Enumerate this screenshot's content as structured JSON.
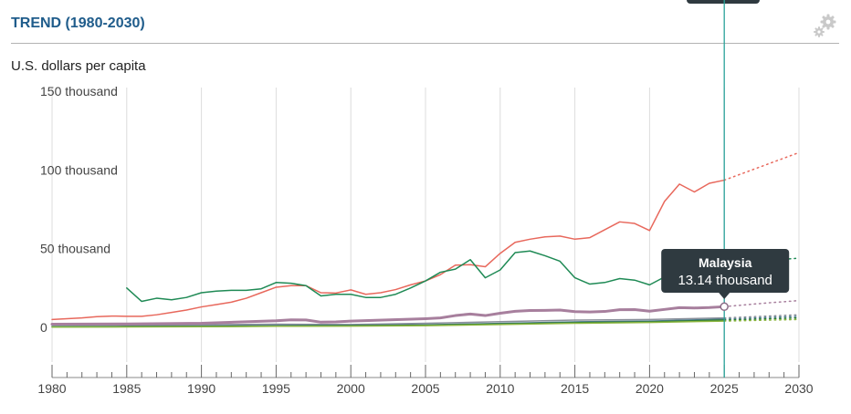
{
  "title": "TREND (1980-2030)",
  "unit_label": "U.S. dollars per capita",
  "settings_icon": "gear-icon",
  "tooltip": {
    "country": "Malaysia",
    "value": "13.14 thousand"
  },
  "chart_data": {
    "type": "line",
    "title": "TREND (1980-2030)",
    "ylabel": "U.S. dollars per capita",
    "xlim": [
      1980,
      2030
    ],
    "ylim": [
      -25000,
      150000
    ],
    "x_ticks": [
      "1980",
      "1985",
      "1990",
      "1995",
      "2000",
      "2005",
      "2010",
      "2015",
      "2020",
      "2025",
      "2030"
    ],
    "y_ticks": [
      {
        "value": 0,
        "label": "0"
      },
      {
        "value": 50000,
        "label": "50 thousand"
      },
      {
        "value": 100000,
        "label": "100 thousand"
      },
      {
        "value": 150000,
        "label": "150 thousand"
      }
    ],
    "grid": "vertical",
    "current_year": 2025,
    "highlight": {
      "x": 2025,
      "y": 13140
    },
    "series": [
      {
        "color": "#e8685c",
        "width": 1.5,
        "x": [
          1980,
          1981,
          1982,
          1983,
          1984,
          1985,
          1986,
          1987,
          1988,
          1989,
          1990,
          1991,
          1992,
          1993,
          1994,
          1995,
          1996,
          1997,
          1998,
          1999,
          2000,
          2001,
          2002,
          2003,
          2004,
          2005,
          2006,
          2007,
          2008,
          2009,
          2010,
          2011,
          2012,
          2013,
          2014,
          2015,
          2016,
          2017,
          2018,
          2019,
          2020,
          2021,
          2022,
          2023,
          2024,
          2025
        ],
        "y": [
          5000,
          5500,
          6000,
          6800,
          7200,
          7000,
          7000,
          8000,
          9500,
          11000,
          13000,
          14500,
          16000,
          18500,
          22000,
          25500,
          26500,
          26500,
          22000,
          21800,
          23800,
          21000,
          22000,
          24000,
          27000,
          29500,
          33500,
          39500,
          39800,
          38500,
          47000,
          54000,
          56000,
          57500,
          58000,
          56000,
          57000,
          62000,
          67000,
          66000,
          61500,
          80000,
          91000,
          86000,
          91500,
          93500
        ],
        "proj_x": [
          2025,
          2026,
          2027,
          2028,
          2029,
          2030
        ],
        "proj_y": [
          93500,
          97000,
          100500,
          104000,
          107500,
          111000
        ]
      },
      {
        "color": "#1f8a55",
        "width": 1.5,
        "x": [
          1985,
          1986,
          1987,
          1988,
          1989,
          1990,
          1991,
          1992,
          1993,
          1994,
          1995,
          1996,
          1997,
          1998,
          1999,
          2000,
          2001,
          2002,
          2003,
          2004,
          2005,
          2006,
          2007,
          2008,
          2009,
          2010,
          2011,
          2012,
          2013,
          2014,
          2015,
          2016,
          2017,
          2018,
          2019,
          2020,
          2021,
          2022,
          2023,
          2024,
          2025
        ],
        "y": [
          25000,
          16500,
          18500,
          17500,
          19000,
          22000,
          23000,
          23500,
          23500,
          24500,
          28500,
          28000,
          26500,
          20000,
          21000,
          21000,
          19000,
          19000,
          21000,
          25000,
          29500,
          35000,
          37000,
          43000,
          31500,
          36500,
          47500,
          48500,
          45500,
          42000,
          31500,
          27500,
          28500,
          31000,
          30000,
          27000,
          32000,
          35000,
          36000,
          38500,
          40000
        ],
        "proj_x": [
          2025,
          2026,
          2027,
          2028,
          2029,
          2030
        ],
        "proj_y": [
          40000,
          40800,
          41600,
          42400,
          43200,
          44000
        ]
      },
      {
        "color": "#a77f9d",
        "width": 3,
        "x": [
          1980,
          1985,
          1990,
          1995,
          1996,
          1997,
          1998,
          1999,
          2000,
          2005,
          2006,
          2007,
          2008,
          2009,
          2010,
          2011,
          2012,
          2013,
          2014,
          2015,
          2016,
          2017,
          2018,
          2019,
          2020,
          2021,
          2022,
          2023,
          2024,
          2025
        ],
        "y": [
          2000,
          2200,
          2600,
          4200,
          4800,
          4700,
          3300,
          3500,
          4000,
          5500,
          6000,
          7500,
          8500,
          7500,
          9000,
          10200,
          10700,
          10800,
          11000,
          10000,
          9800,
          10100,
          11200,
          11300,
          10300,
          11400,
          12500,
          12300,
          12600,
          13140
        ],
        "proj_x": [
          2025,
          2026,
          2027,
          2028,
          2029,
          2030
        ],
        "proj_y": [
          13140,
          14000,
          14800,
          15600,
          16300,
          17000
        ]
      },
      {
        "color": "#8a8f9a",
        "width": 1.5,
        "x": [
          1980,
          1985,
          1990,
          1995,
          2000,
          2005,
          2010,
          2015,
          2020,
          2025
        ],
        "y": [
          1500,
          1500,
          1700,
          2000,
          1800,
          2600,
          3600,
          4600,
          5000,
          6000
        ],
        "proj_x": [
          2025,
          2030
        ],
        "proj_y": [
          6000,
          8000
        ]
      },
      {
        "color": "#4a7a8c",
        "width": 1.5,
        "x": [
          1980,
          1985,
          1990,
          1995,
          2000,
          2005,
          2010,
          2015,
          2020,
          2025
        ],
        "y": [
          600,
          700,
          900,
          1200,
          1400,
          1700,
          2500,
          3500,
          4000,
          5200
        ],
        "proj_x": [
          2025,
          2030
        ],
        "proj_y": [
          5200,
          7000
        ]
      },
      {
        "color": "#2e7d32",
        "width": 1.5,
        "x": [
          1980,
          1985,
          1990,
          1995,
          2000,
          2005,
          2010,
          2015,
          2020,
          2025
        ],
        "y": [
          300,
          400,
          600,
          800,
          1000,
          1400,
          2200,
          3000,
          3500,
          4600
        ],
        "proj_x": [
          2025,
          2030
        ],
        "proj_y": [
          4600,
          6000
        ]
      },
      {
        "color": "#8bb53f",
        "width": 1.5,
        "x": [
          1980,
          1985,
          1990,
          1995,
          2000,
          2005,
          2010,
          2015,
          2020,
          2025
        ],
        "y": [
          200,
          300,
          400,
          700,
          800,
          1100,
          1800,
          2600,
          3100,
          4000
        ],
        "proj_x": [
          2025,
          2030
        ],
        "proj_y": [
          4000,
          5000
        ]
      }
    ]
  }
}
